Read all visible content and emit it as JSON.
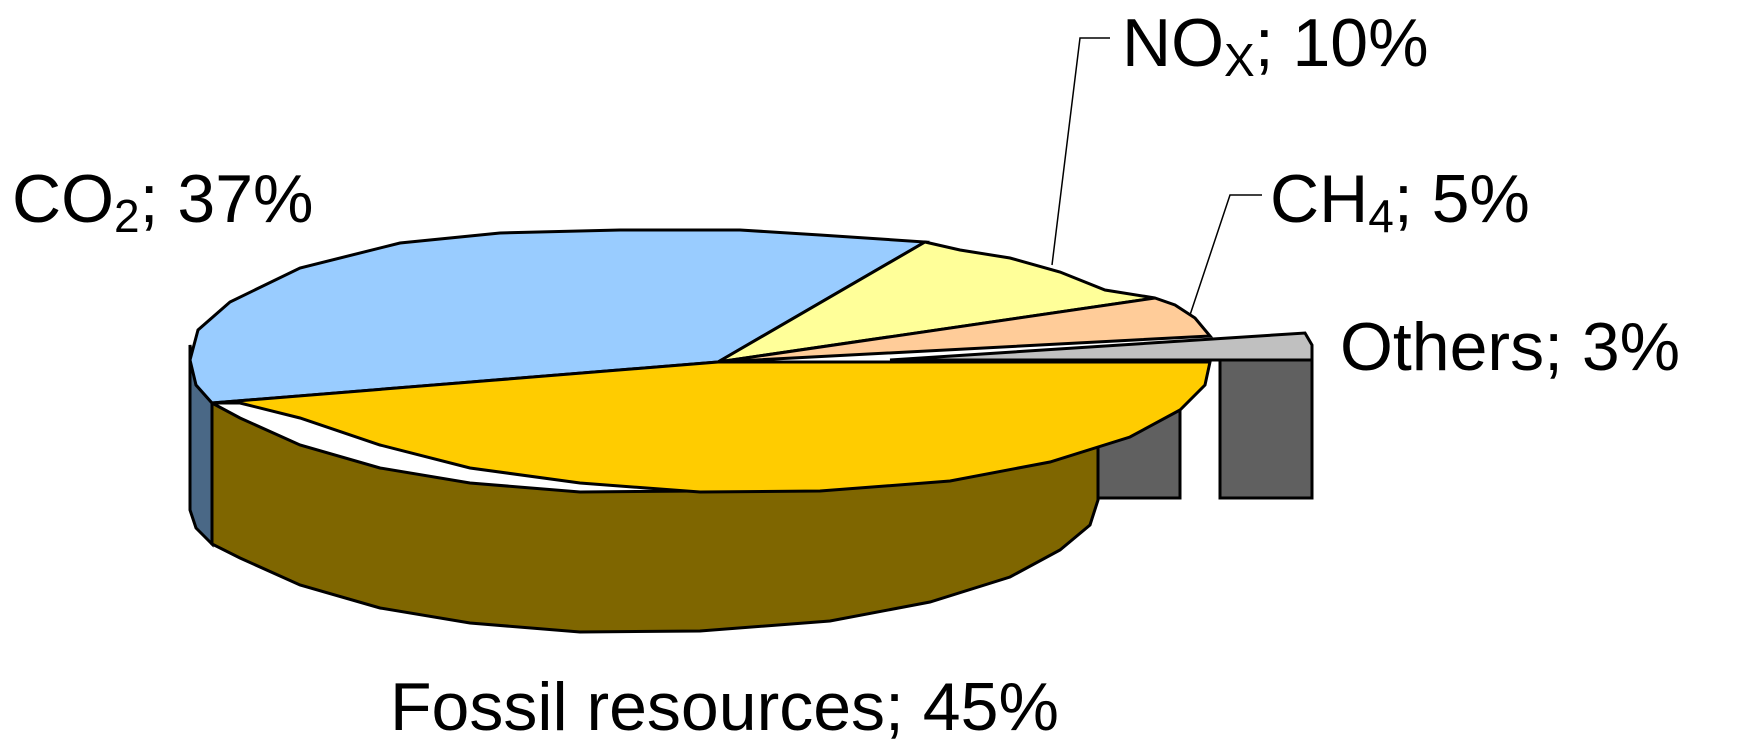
{
  "chart_data": {
    "type": "pie",
    "style": "3d",
    "title": "",
    "slices": [
      {
        "label": "Fossil resources",
        "value": 45,
        "label_text": "Fossil resources; 45%",
        "color": "#FFCC00",
        "side_color": "#7F6600"
      },
      {
        "label": "CO2",
        "value": 37,
        "label_main": "CO",
        "label_sub": "2",
        "label_rest": "; 37%",
        "color": "#99CCFF",
        "side_color": "#4A6886"
      },
      {
        "label": "NOx",
        "value": 10,
        "label_main": "NO",
        "label_sub": "X",
        "label_rest": "; 10%",
        "color": "#FFFF99",
        "side_color": "#808050"
      },
      {
        "label": "CH4",
        "value": 5,
        "label_main": "CH",
        "label_sub": "4",
        "label_rest": "; 5%",
        "color": "#FFCC99",
        "side_color": "#806650"
      },
      {
        "label": "Others",
        "value": 3,
        "label_text": "Others; 3%",
        "color": "#C0C0C0",
        "side_color": "#606060",
        "exploded": true
      }
    ]
  }
}
